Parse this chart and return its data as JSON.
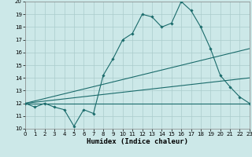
{
  "xlabel": "Humidex (Indice chaleur)",
  "xlim": [
    0,
    23
  ],
  "ylim": [
    10,
    20
  ],
  "yticks": [
    10,
    11,
    12,
    13,
    14,
    15,
    16,
    17,
    18,
    19,
    20
  ],
  "xticks": [
    0,
    1,
    2,
    3,
    4,
    5,
    6,
    7,
    8,
    9,
    10,
    11,
    12,
    13,
    14,
    15,
    16,
    17,
    18,
    19,
    20,
    21,
    22,
    23
  ],
  "background_color": "#cce8e8",
  "grid_color": "#aacccc",
  "line_color": "#1a6b6b",
  "line1_x": [
    0,
    1,
    2,
    3,
    4,
    5,
    6,
    7,
    8,
    9,
    10,
    11,
    12,
    13,
    14,
    15,
    16,
    17,
    18,
    19,
    20,
    21,
    22,
    23
  ],
  "line1_y": [
    12,
    11.7,
    12,
    11.7,
    11.5,
    10.2,
    11.5,
    11.2,
    14.2,
    15.5,
    17.0,
    17.5,
    19.0,
    18.8,
    18.0,
    18.3,
    20.0,
    19.3,
    18.0,
    16.3,
    14.2,
    13.3,
    12.5,
    12.0
  ],
  "line2_x": [
    0,
    23
  ],
  "line2_y": [
    12,
    16.3
  ],
  "line3_x": [
    0,
    23
  ],
  "line3_y": [
    12,
    14.0
  ],
  "line4_x": [
    0,
    23
  ],
  "line4_y": [
    12,
    12.0
  ],
  "tick_fontsize": 5.0,
  "xlabel_fontsize": 6.5
}
